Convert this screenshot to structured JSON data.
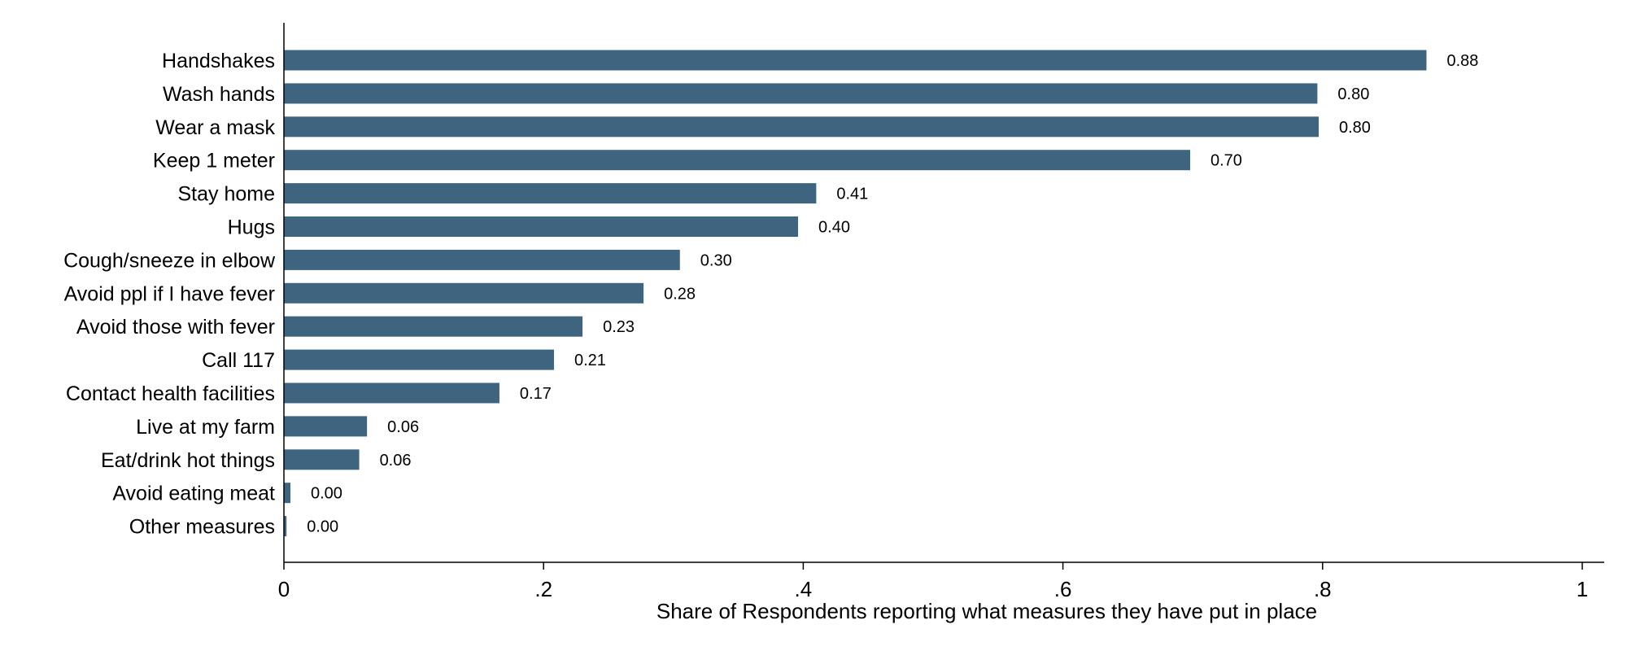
{
  "chart_data": {
    "type": "bar",
    "orientation": "horizontal",
    "categories": [
      "Handshakes",
      "Wash hands",
      "Wear a mask",
      "Keep 1 meter",
      "Stay home",
      "Hugs",
      "Cough/sneeze in elbow",
      "Avoid ppl if I have fever",
      "Avoid those with fever",
      "Call 117",
      "Contact health facilities",
      "Live at my farm",
      "Eat/drink hot things",
      "Avoid eating meat",
      "Other measures"
    ],
    "values": [
      0.88,
      0.796,
      0.797,
      0.698,
      0.41,
      0.396,
      0.305,
      0.277,
      0.23,
      0.208,
      0.166,
      0.064,
      0.058,
      0.005,
      0.002
    ],
    "value_labels": [
      "0.88",
      "0.80",
      "0.80",
      "0.70",
      "0.41",
      "0.40",
      "0.30",
      "0.28",
      "0.23",
      "0.21",
      "0.17",
      "0.06",
      "0.06",
      "0.00",
      "0.00"
    ],
    "xlabel": "Share of Respondents reporting what measures they have put in place",
    "xlim": [
      0,
      1
    ],
    "xticks": [
      0,
      0.2,
      0.4,
      0.6,
      0.8,
      1
    ],
    "xtick_labels": [
      "0",
      ".2",
      ".4",
      ".6",
      ".8",
      "1"
    ],
    "grid": false,
    "bar_color": "#3e647f"
  }
}
